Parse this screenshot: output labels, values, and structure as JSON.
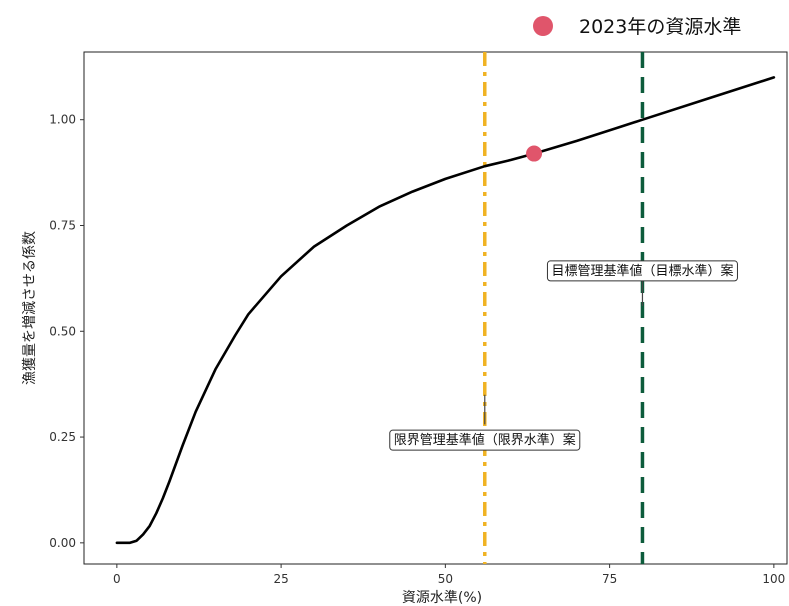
{
  "chart_data": {
    "type": "line",
    "xlabel": "資源水準(%)",
    "ylabel": "漁獲量を増減させる係数",
    "xlim": [
      -5,
      102
    ],
    "ylim": [
      -0.05,
      1.16
    ],
    "x_ticks": [
      0,
      25,
      50,
      75,
      100
    ],
    "x_tick_labels": [
      "0",
      "25",
      "50",
      "75",
      "100"
    ],
    "y_ticks": [
      0.0,
      0.25,
      0.5,
      0.75,
      1.0
    ],
    "y_tick_labels": [
      "0.00",
      "0.25",
      "0.50",
      "0.75",
      "1.00"
    ],
    "grid": false,
    "series": [
      {
        "color": "#000000",
        "x": [
          0,
          2,
          3,
          4,
          5,
          6,
          7,
          8,
          10,
          12,
          15,
          18,
          20,
          25,
          30,
          35,
          40,
          45,
          50,
          56,
          60,
          63.5,
          70,
          80,
          90,
          100
        ],
        "y": [
          0.0,
          0.0,
          0.005,
          0.02,
          0.04,
          0.07,
          0.105,
          0.145,
          0.23,
          0.31,
          0.41,
          0.49,
          0.54,
          0.63,
          0.7,
          0.75,
          0.795,
          0.83,
          0.86,
          0.89,
          0.905,
          0.92,
          0.95,
          1.0,
          1.05,
          1.1
        ]
      }
    ],
    "point": {
      "x": 63.5,
      "y": 0.92,
      "color": "#e0556b"
    },
    "vlines": [
      {
        "x": 56,
        "color": "#f0b323",
        "style": "dashdot",
        "label": "限界管理基準値（限界水準）案",
        "label_y": 0.245,
        "tick_from": 0.35,
        "tick_to": 0.28
      },
      {
        "x": 80,
        "color": "#0d5c3c",
        "style": "dashed",
        "label": "目標管理基準値（目標水準）案",
        "label_y": 0.645,
        "tick_from": 0.62,
        "tick_to": 0.56
      }
    ],
    "legend": {
      "label": "2023年の資源水準",
      "color": "#e0556b",
      "placement": "top-right"
    }
  }
}
